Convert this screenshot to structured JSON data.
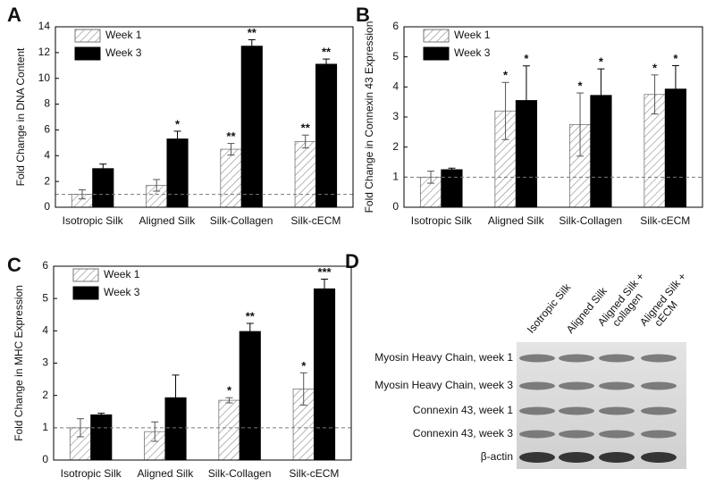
{
  "chart_data": [
    {
      "type": "bar",
      "panel_label": "A",
      "y_label": "Fold Change in DNA Content",
      "categories": [
        "Isotropic Silk",
        "Aligned Silk",
        "Silk-Collagen",
        "Silk-cECM"
      ],
      "series": [
        {
          "name": "Week 1",
          "color": "#8a8a8a",
          "hatch": true,
          "values": [
            1.0,
            1.7,
            4.5,
            5.1
          ],
          "errors": [
            0.35,
            0.45,
            0.45,
            0.5
          ],
          "stars": [
            null,
            null,
            "**",
            "**"
          ]
        },
        {
          "name": "Week 3",
          "color": "#000000",
          "hatch": false,
          "values": [
            3.0,
            5.3,
            12.5,
            11.1
          ],
          "errors": [
            0.35,
            0.6,
            0.5,
            0.4
          ],
          "stars": [
            null,
            "*",
            "**",
            "**"
          ]
        }
      ],
      "ylim": [
        0,
        14
      ],
      "yticks": [
        0,
        2,
        4,
        6,
        8,
        10,
        12,
        14
      ],
      "reference_line": 1,
      "legend": "upper left"
    },
    {
      "type": "bar",
      "panel_label": "B",
      "y_label": "Fold Change in Connexin 43 Expression",
      "categories": [
        "Isotropic Silk",
        "Aligned Silk",
        "Silk-Collagen",
        "Silk-cECM"
      ],
      "series": [
        {
          "name": "Week 1",
          "color": "#8a8a8a",
          "hatch": true,
          "values": [
            1.0,
            3.2,
            2.75,
            3.75
          ],
          "errors": [
            0.2,
            0.95,
            1.05,
            0.65
          ],
          "stars": [
            null,
            "*",
            "*",
            "*"
          ]
        },
        {
          "name": "Week 3",
          "color": "#000000",
          "hatch": false,
          "values": [
            1.25,
            3.55,
            3.72,
            3.93
          ],
          "errors": [
            0.05,
            1.15,
            0.88,
            0.78
          ],
          "stars": [
            null,
            "*",
            "*",
            "*"
          ]
        }
      ],
      "ylim": [
        0,
        6
      ],
      "yticks": [
        0,
        1,
        2,
        3,
        4,
        5,
        6
      ],
      "reference_line": 1,
      "legend": "upper left"
    },
    {
      "type": "bar",
      "panel_label": "C",
      "y_label": "Fold Change in MHC Expression",
      "categories": [
        "Isotropic Silk",
        "Aligned Silk",
        "Silk-Collagen",
        "Silk-cECM"
      ],
      "series": [
        {
          "name": "Week 1",
          "color": "#8a8a8a",
          "hatch": true,
          "values": [
            1.0,
            0.88,
            1.85,
            2.2
          ],
          "errors": [
            0.28,
            0.3,
            0.08,
            0.5
          ],
          "stars": [
            null,
            null,
            "*",
            "*"
          ]
        },
        {
          "name": "Week 3",
          "color": "#000000",
          "hatch": false,
          "values": [
            1.4,
            1.93,
            3.98,
            5.3
          ],
          "errors": [
            0.05,
            0.7,
            0.25,
            0.3
          ],
          "stars": [
            null,
            null,
            "**",
            "***"
          ]
        }
      ],
      "ylim": [
        0,
        6
      ],
      "yticks": [
        0,
        1,
        2,
        3,
        4,
        5,
        6
      ],
      "reference_line": 1,
      "legend": "upper left"
    }
  ],
  "blot": {
    "panel_label": "D",
    "columns": [
      [
        "Isotropic Silk"
      ],
      [
        "Aligned Silk"
      ],
      [
        "Aligned Silk +",
        "collagen"
      ],
      [
        "Aligned Silk +",
        "cECM"
      ]
    ],
    "rows": [
      "Myosin Heavy Chain, week 1",
      "Myosin Heavy Chain, week 3",
      "Connexin 43, week 1",
      "Connexin 43, week 3",
      "β-actin"
    ]
  }
}
